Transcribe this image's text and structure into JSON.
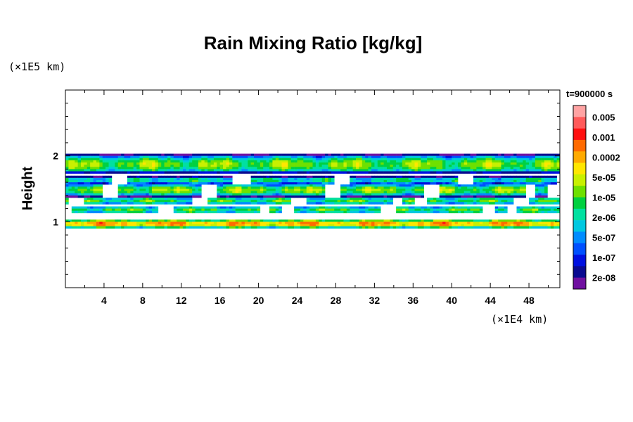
{
  "chart_data": {
    "type": "heatmap",
    "title": "Rain Mixing Ratio [kg/kg]",
    "ylabel": "Height",
    "xlabel": "",
    "x_unit": "(×1E4 km)",
    "y_unit": "(×1E5 km)",
    "time_label": "t=900000 s",
    "xlim": [
      0,
      51.2
    ],
    "ylim": [
      0,
      3
    ],
    "x_ticks": [
      4,
      8,
      12,
      16,
      20,
      24,
      28,
      32,
      36,
      40,
      44,
      48
    ],
    "y_ticks": [
      1,
      2
    ],
    "colorbar": {
      "labels": [
        "0.005",
        "0.001",
        "0.0002",
        "5e-05",
        "1e-05",
        "2e-06",
        "5e-07",
        "1e-07",
        "2e-08"
      ],
      "colors": [
        "#ffa3a3",
        "#ff5a5a",
        "#ff1010",
        "#ff6a00",
        "#ffaa00",
        "#ffe600",
        "#c8f000",
        "#6ee000",
        "#00d040",
        "#00e0a0",
        "#00c8e0",
        "#008cff",
        "#0050ff",
        "#0010e0",
        "#0a0a90",
        "#7010a0"
      ]
    },
    "bands": [
      {
        "y_center": 1.87,
        "half_width": 0.12,
        "peak_level": 8
      },
      {
        "y_center": 1.63,
        "half_width": 0.05,
        "peak_level": 6
      },
      {
        "y_center": 1.48,
        "half_width": 0.08,
        "peak_level": 8
      },
      {
        "y_center": 1.32,
        "half_width": 0.05,
        "peak_level": 7
      },
      {
        "y_center": 1.18,
        "half_width": 0.05,
        "peak_level": 7
      },
      {
        "y_center": 0.97,
        "half_width": 0.06,
        "peak_level": 11
      }
    ]
  }
}
